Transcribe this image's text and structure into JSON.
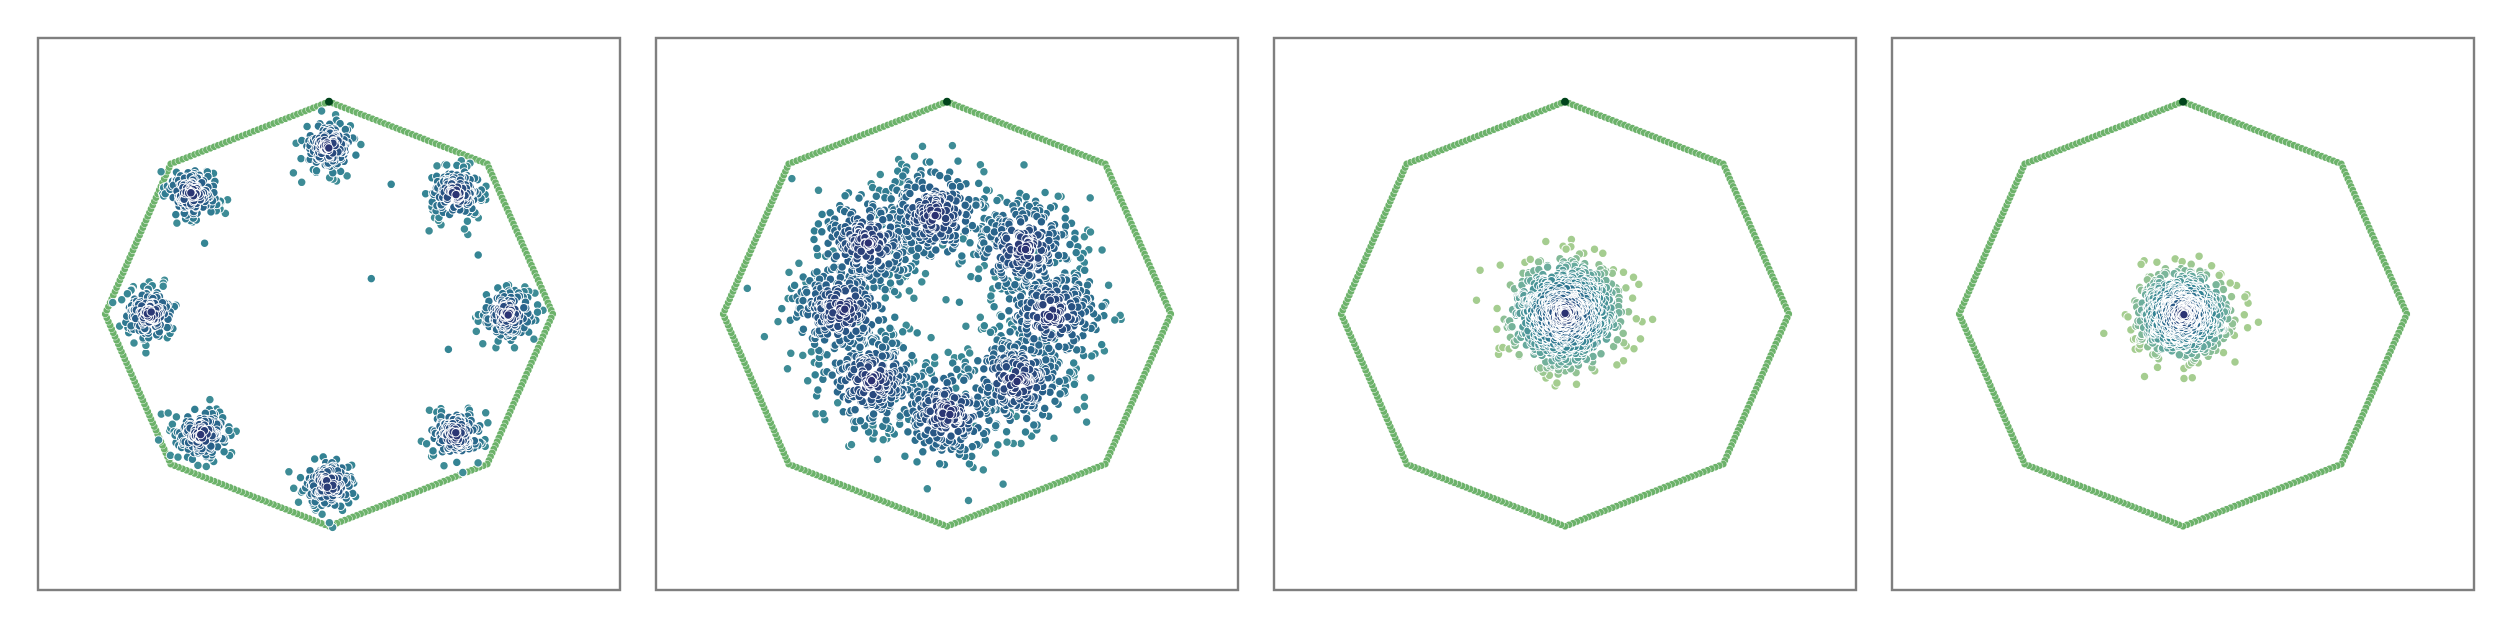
{
  "chart_data": [
    {
      "type": "scatter",
      "title": "",
      "xlabel": "",
      "ylabel": "",
      "grid": false,
      "legend": "none",
      "xlim": [
        -1.17,
        1.17
      ],
      "ylim": [
        -1.17,
        1.17
      ],
      "boundary": {
        "shape": "regular octagon",
        "circumradius": 0.9,
        "vertex_markers_per_edge": 40,
        "color": "#6cb26a",
        "top_vertex_color": "#00441b"
      },
      "clusters": [
        {
          "x": 0.0,
          "y": 0.71,
          "spread": 0.055,
          "count": 150
        },
        {
          "x": 0.51,
          "y": 0.51,
          "spread": 0.055,
          "count": 150
        },
        {
          "x": 0.72,
          "y": 0.0,
          "spread": 0.055,
          "count": 150
        },
        {
          "x": 0.51,
          "y": -0.51,
          "spread": 0.055,
          "count": 150
        },
        {
          "x": 0.0,
          "y": -0.72,
          "spread": 0.055,
          "count": 150
        },
        {
          "x": -0.51,
          "y": -0.51,
          "spread": 0.055,
          "count": 150
        },
        {
          "x": -0.72,
          "y": 0.0,
          "spread": 0.055,
          "count": 150
        },
        {
          "x": -0.55,
          "y": 0.51,
          "spread": 0.055,
          "count": 150
        }
      ],
      "outliers": [
        [
          0.17,
          0.15
        ],
        [
          -0.5,
          0.3
        ],
        [
          0.48,
          -0.15
        ],
        [
          0.25,
          0.55
        ],
        [
          -0.4,
          -0.6
        ],
        [
          0.6,
          0.25
        ]
      ],
      "colormap": "crest"
    },
    {
      "type": "scatter",
      "title": "",
      "xlabel": "",
      "ylabel": "",
      "grid": false,
      "legend": "none",
      "xlim": [
        -1.17,
        1.17
      ],
      "ylim": [
        -1.17,
        1.17
      ],
      "boundary": {
        "shape": "regular octagon",
        "circumradius": 0.9,
        "vertex_markers_per_edge": 40,
        "color": "#6cb26a",
        "top_vertex_color": "#00441b"
      },
      "clusters": [
        {
          "x": -0.05,
          "y": 0.42,
          "spread": 0.11,
          "count": 260
        },
        {
          "x": 0.31,
          "y": 0.28,
          "spread": 0.11,
          "count": 260
        },
        {
          "x": 0.42,
          "y": 0.0,
          "spread": 0.11,
          "count": 260
        },
        {
          "x": 0.28,
          "y": -0.28,
          "spread": 0.11,
          "count": 260
        },
        {
          "x": 0.0,
          "y": -0.42,
          "spread": 0.11,
          "count": 260
        },
        {
          "x": -0.3,
          "y": -0.28,
          "spread": 0.11,
          "count": 260
        },
        {
          "x": -0.42,
          "y": 0.02,
          "spread": 0.11,
          "count": 260
        },
        {
          "x": -0.32,
          "y": 0.3,
          "spread": 0.11,
          "count": 260
        }
      ],
      "outliers": [
        [
          0.05,
          0.05
        ],
        [
          -0.12,
          -0.08
        ],
        [
          0.15,
          -0.05
        ]
      ],
      "colormap": "crest"
    },
    {
      "type": "scatter",
      "title": "",
      "xlabel": "",
      "ylabel": "",
      "grid": false,
      "legend": "none",
      "xlim": [
        -1.17,
        1.17
      ],
      "ylim": [
        -1.17,
        1.17
      ],
      "boundary": {
        "shape": "regular octagon",
        "circumradius": 0.9,
        "vertex_markers_per_edge": 40,
        "color": "#6cb26a",
        "top_vertex_color": "#00441b"
      },
      "clusters": [
        {
          "x": 0.0,
          "y": 0.0,
          "spread": 0.105,
          "count": 1100
        }
      ],
      "outliers": [],
      "colormap": "crest"
    },
    {
      "type": "scatter",
      "title": "",
      "xlabel": "",
      "ylabel": "",
      "grid": false,
      "legend": "none",
      "xlim": [
        -1.17,
        1.17
      ],
      "ylim": [
        -1.17,
        1.17
      ],
      "boundary": {
        "shape": "regular octagon",
        "circumradius": 0.9,
        "vertex_markers_per_edge": 40,
        "color": "#6cb26a",
        "top_vertex_color": "#00441b"
      },
      "clusters": [
        {
          "x": 0.0,
          "y": 0.0,
          "spread": 0.085,
          "count": 1000
        }
      ],
      "outliers": [],
      "colormap": "crest"
    }
  ]
}
